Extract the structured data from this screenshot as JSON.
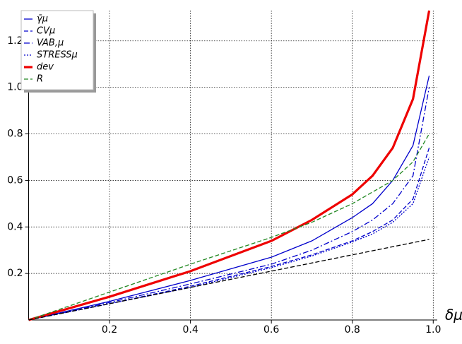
{
  "chart_data": {
    "type": "line",
    "x_label": "δμ",
    "x": [
      0,
      0.2,
      0.4,
      0.6,
      0.7,
      0.8,
      0.85,
      0.9,
      0.95,
      0.99
    ],
    "xlim": [
      0,
      1.01
    ],
    "ylim": [
      0,
      1.33
    ],
    "xticks": [
      0.2,
      0.4,
      0.6,
      0.8,
      {
        "value": 1,
        "label": "1.0"
      }
    ],
    "yticks": [
      0.2,
      0.4,
      0.6,
      0.8,
      {
        "value": 1,
        "label": "1.0"
      },
      1.2
    ],
    "grid": true,
    "legend": "upper left",
    "series": [
      {
        "name": "γ̄μ",
        "color": "#0000cc",
        "style": "solid",
        "values": [
          0,
          0.08,
          0.17,
          0.27,
          0.34,
          0.44,
          0.5,
          0.6,
          0.75,
          1.05
        ]
      },
      {
        "name": "CVμ",
        "color": "#0000cc",
        "style": "dashed",
        "values": [
          0,
          0.07,
          0.145,
          0.23,
          0.28,
          0.34,
          0.38,
          0.43,
          0.52,
          0.74
        ]
      },
      {
        "name": "VAB,μ",
        "color": "#0000cc",
        "style": "dashdot",
        "values": [
          0,
          0.075,
          0.155,
          0.24,
          0.3,
          0.38,
          0.43,
          0.5,
          0.62,
          1.0
        ]
      },
      {
        "name": "STRESSμ",
        "color": "#0000cc",
        "style": "dotted",
        "values": [
          0,
          0.07,
          0.14,
          0.225,
          0.275,
          0.335,
          0.37,
          0.42,
          0.5,
          0.7
        ]
      },
      {
        "name": "dev",
        "color": "#ee0000",
        "style": "thick",
        "values": [
          0,
          0.1,
          0.21,
          0.34,
          0.43,
          0.54,
          0.62,
          0.74,
          0.95,
          1.33
        ]
      },
      {
        "name": "R",
        "color": "#228822",
        "style": "dashed",
        "values": [
          0,
          0.12,
          0.24,
          0.355,
          0.42,
          0.5,
          0.55,
          0.6,
          0.68,
          0.8
        ]
      },
      {
        "color": "#000000",
        "style": "dashed",
        "values": [
          0,
          0.07,
          0.14,
          0.21,
          0.245,
          0.28,
          0.2975,
          0.315,
          0.3325,
          0.3465
        ]
      }
    ]
  }
}
